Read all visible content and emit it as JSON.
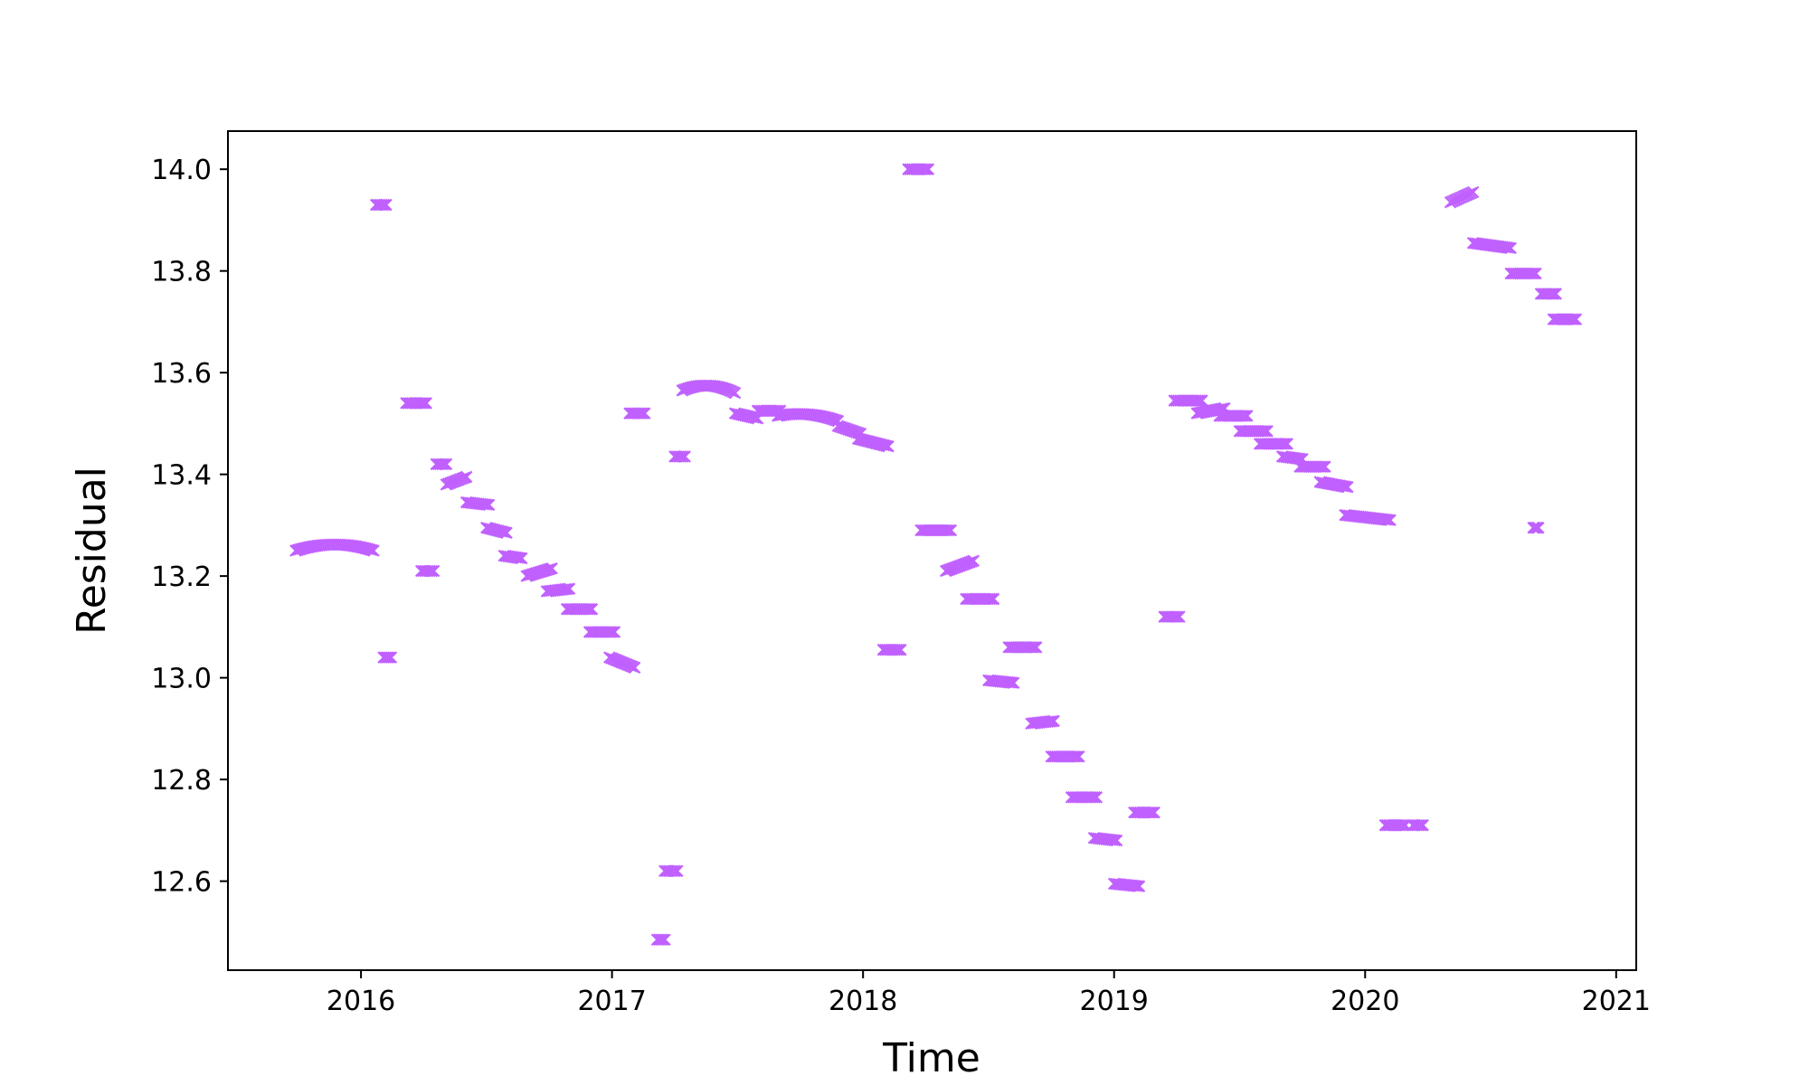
{
  "chart_data": {
    "type": "scatter",
    "title": "",
    "xlabel": "Time",
    "ylabel": "Residual",
    "xlim": [
      2015.47,
      2021.08
    ],
    "ylim": [
      12.425,
      14.075
    ],
    "xticks": [
      2016,
      2017,
      2018,
      2019,
      2020,
      2021
    ],
    "xtick_labels": [
      "2016",
      "2017",
      "2018",
      "2019",
      "2020",
      "2021"
    ],
    "yticks": [
      12.6,
      12.8,
      13.0,
      13.2,
      13.4,
      13.6,
      13.8,
      14.0
    ],
    "ytick_labels": [
      "12.6",
      "12.8",
      "13.0",
      "13.2",
      "13.4",
      "13.6",
      "13.8",
      "14.0"
    ],
    "grid": false,
    "legend": "none",
    "marker": "x",
    "marker_color": "#c060ff",
    "segments": [
      {
        "x": [
          2015.74,
          2016.05
        ],
        "y": [
          13.25,
          13.25
        ],
        "bulge": 0.012
      },
      {
        "x": [
          2016.06,
          2016.1
        ],
        "y": [
          13.93,
          13.93
        ]
      },
      {
        "x": [
          2016.09,
          2016.12
        ],
        "y": [
          13.04,
          13.04
        ]
      },
      {
        "x": [
          2016.18,
          2016.26
        ],
        "y": [
          13.54,
          13.54
        ]
      },
      {
        "x": [
          2016.24,
          2016.29
        ],
        "y": [
          13.21,
          13.21
        ]
      },
      {
        "x": [
          2016.3,
          2016.34
        ],
        "y": [
          13.42,
          13.42
        ]
      },
      {
        "x": [
          2016.34,
          2016.42
        ],
        "y": [
          13.38,
          13.395
        ]
      },
      {
        "x": [
          2016.42,
          2016.51
        ],
        "y": [
          13.345,
          13.34
        ]
      },
      {
        "x": [
          2016.5,
          2016.58
        ],
        "y": [
          13.295,
          13.285
        ]
      },
      {
        "x": [
          2016.57,
          2016.64
        ],
        "y": [
          13.24,
          13.235
        ]
      },
      {
        "x": [
          2016.66,
          2016.76
        ],
        "y": [
          13.2,
          13.215
        ]
      },
      {
        "x": [
          2016.74,
          2016.83
        ],
        "y": [
          13.17,
          13.175
        ]
      },
      {
        "x": [
          2016.82,
          2016.92
        ],
        "y": [
          13.135,
          13.135
        ]
      },
      {
        "x": [
          2016.91,
          2017.01
        ],
        "y": [
          13.09,
          13.09
        ]
      },
      {
        "x": [
          2016.99,
          2017.09
        ],
        "y": [
          13.04,
          13.02
        ]
      },
      {
        "x": [
          2017.07,
          2017.13
        ],
        "y": [
          13.52,
          13.52
        ]
      },
      {
        "x": [
          2017.18,
          2017.21
        ],
        "y": [
          12.485,
          12.485
        ]
      },
      {
        "x": [
          2017.21,
          2017.26
        ],
        "y": [
          12.62,
          12.62
        ]
      },
      {
        "x": [
          2017.25,
          2017.29
        ],
        "y": [
          13.435,
          13.435
        ]
      },
      {
        "x": [
          2017.28,
          2017.49
        ],
        "y": [
          13.565,
          13.56
        ],
        "bulge": 0.012
      },
      {
        "x": [
          2017.49,
          2017.58
        ],
        "y": [
          13.52,
          13.51
        ]
      },
      {
        "x": [
          2017.58,
          2017.67
        ],
        "y": [
          13.525,
          13.525
        ]
      },
      {
        "x": [
          2017.66,
          2017.9
        ],
        "y": [
          13.515,
          13.505
        ],
        "bulge": 0.008
      },
      {
        "x": [
          2017.9,
          2017.99
        ],
        "y": [
          13.495,
          13.48
        ]
      },
      {
        "x": [
          2017.98,
          2018.1
        ],
        "y": [
          13.47,
          13.455
        ]
      },
      {
        "x": [
          2018.08,
          2018.15
        ],
        "y": [
          13.055,
          13.055
        ]
      },
      {
        "x": [
          2018.18,
          2018.26
        ],
        "y": [
          14.0,
          14.0
        ]
      },
      {
        "x": [
          2018.23,
          2018.35
        ],
        "y": [
          13.29,
          13.29
        ]
      },
      {
        "x": [
          2018.33,
          2018.44
        ],
        "y": [
          13.21,
          13.23
        ]
      },
      {
        "x": [
          2018.41,
          2018.52
        ],
        "y": [
          13.155,
          13.155
        ]
      },
      {
        "x": [
          2018.5,
          2018.6
        ],
        "y": [
          12.995,
          12.99
        ]
      },
      {
        "x": [
          2018.58,
          2018.69
        ],
        "y": [
          13.06,
          13.06
        ]
      },
      {
        "x": [
          2018.67,
          2018.76
        ],
        "y": [
          12.91,
          12.915
        ]
      },
      {
        "x": [
          2018.75,
          2018.86
        ],
        "y": [
          12.845,
          12.845
        ]
      },
      {
        "x": [
          2018.83,
          2018.93
        ],
        "y": [
          12.765,
          12.765
        ]
      },
      {
        "x": [
          2018.92,
          2019.01
        ],
        "y": [
          12.685,
          12.68
        ]
      },
      {
        "x": [
          2019.0,
          2019.1
        ],
        "y": [
          12.595,
          12.59
        ]
      },
      {
        "x": [
          2019.08,
          2019.16
        ],
        "y": [
          12.735,
          12.735
        ]
      },
      {
        "x": [
          2019.2,
          2019.26
        ],
        "y": [
          13.12,
          13.12
        ]
      },
      {
        "x": [
          2019.24,
          2019.35
        ],
        "y": [
          13.545,
          13.545
        ]
      },
      {
        "x": [
          2019.33,
          2019.44
        ],
        "y": [
          13.52,
          13.53
        ]
      },
      {
        "x": [
          2019.42,
          2019.53
        ],
        "y": [
          13.515,
          13.515
        ]
      },
      {
        "x": [
          2019.5,
          2019.61
        ],
        "y": [
          13.485,
          13.485
        ]
      },
      {
        "x": [
          2019.58,
          2019.69
        ],
        "y": [
          13.46,
          13.46
        ]
      },
      {
        "x": [
          2019.67,
          2019.75
        ],
        "y": [
          13.435,
          13.43
        ]
      },
      {
        "x": [
          2019.74,
          2019.84
        ],
        "y": [
          13.415,
          13.415
        ]
      },
      {
        "x": [
          2019.82,
          2019.93
        ],
        "y": [
          13.385,
          13.375
        ]
      },
      {
        "x": [
          2019.92,
          2020.1
        ],
        "y": [
          13.32,
          13.31
        ]
      },
      {
        "x": [
          2020.08,
          2020.16
        ],
        "y": [
          12.71,
          12.71
        ]
      },
      {
        "x": [
          2020.19,
          2020.23
        ],
        "y": [
          12.71,
          12.71
        ]
      },
      {
        "x": [
          2020.34,
          2020.43
        ],
        "y": [
          13.935,
          13.955
        ]
      },
      {
        "x": [
          2020.43,
          2020.58
        ],
        "y": [
          13.855,
          13.845
        ]
      },
      {
        "x": [
          2020.58,
          2020.68
        ],
        "y": [
          13.795,
          13.795
        ]
      },
      {
        "x": [
          2020.67,
          2020.69
        ],
        "y": [
          13.295,
          13.295
        ]
      },
      {
        "x": [
          2020.7,
          2020.76
        ],
        "y": [
          13.755,
          13.755
        ]
      },
      {
        "x": [
          2020.75,
          2020.84
        ],
        "y": [
          13.705,
          13.705
        ]
      }
    ]
  }
}
